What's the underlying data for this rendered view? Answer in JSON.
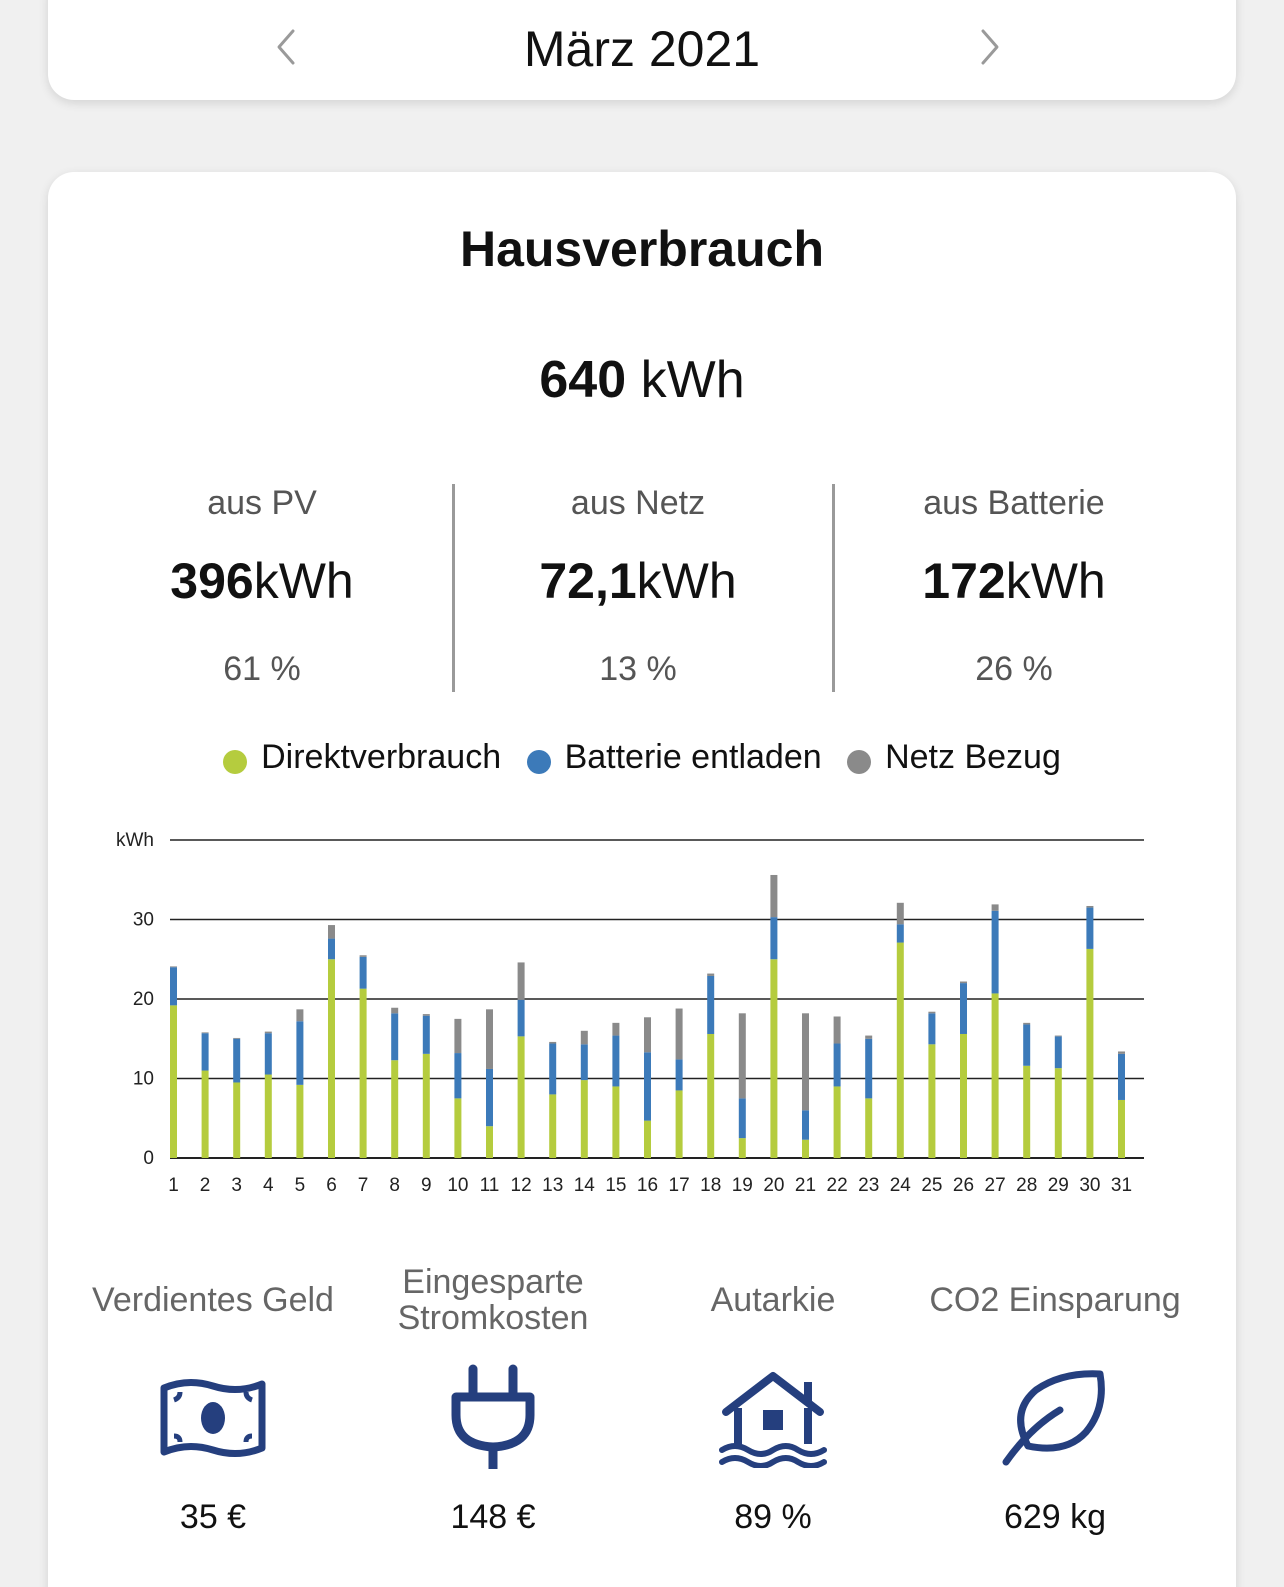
{
  "header": {
    "month": "März 2021",
    "prev_icon": "chevron-left-icon",
    "next_icon": "chevron-right-icon"
  },
  "card": {
    "title": "Hausverbrauch",
    "total_value": "640",
    "total_unit": "kWh"
  },
  "stats": [
    {
      "label": "aus PV",
      "value": "396",
      "unit": "kWh",
      "percent": "61 %"
    },
    {
      "label": "aus Netz",
      "value": "72,1",
      "unit": "kWh",
      "percent": "13 %"
    },
    {
      "label": "aus Batterie",
      "value": "172",
      "unit": "kWh",
      "percent": "26 %"
    }
  ],
  "legend": [
    {
      "label": "Direktverbrauch",
      "color": "#b5cc3e"
    },
    {
      "label": "Batterie entladen",
      "color": "#3c7ab9"
    },
    {
      "label": "Netz Bezug",
      "color": "#8a8a8a"
    }
  ],
  "chart_data": {
    "type": "bar",
    "stacked": true,
    "ylabel": "kWh",
    "ylim": [
      0,
      40
    ],
    "yticks": [
      0,
      10,
      20,
      30
    ],
    "grid": true,
    "legend_position": "top",
    "categories": [
      "1",
      "2",
      "3",
      "4",
      "5",
      "6",
      "7",
      "8",
      "9",
      "10",
      "11",
      "12",
      "13",
      "14",
      "15",
      "16",
      "17",
      "18",
      "19",
      "20",
      "21",
      "22",
      "23",
      "24",
      "25",
      "26",
      "27",
      "28",
      "29",
      "30",
      "31"
    ],
    "series": [
      {
        "name": "Direktverbrauch",
        "color": "#b5cc3e",
        "values": [
          19.2,
          11.0,
          9.5,
          10.5,
          9.2,
          25.0,
          21.3,
          12.3,
          13.1,
          7.5,
          4.0,
          15.3,
          8.0,
          9.8,
          9.0,
          4.7,
          8.5,
          15.6,
          2.5,
          25.0,
          2.3,
          9.0,
          7.5,
          27.1,
          14.3,
          15.6,
          20.7,
          11.6,
          11.3,
          26.3,
          7.3
        ]
      },
      {
        "name": "Batterie entladen",
        "color": "#3c7ab9",
        "values": [
          4.8,
          4.7,
          5.5,
          5.2,
          8.0,
          2.6,
          4.0,
          5.9,
          4.8,
          5.7,
          7.2,
          4.6,
          6.4,
          4.5,
          6.4,
          8.6,
          3.9,
          7.3,
          5.0,
          5.3,
          3.7,
          5.4,
          7.5,
          2.3,
          3.9,
          6.4,
          10.4,
          5.2,
          4.0,
          5.2,
          5.8
        ]
      },
      {
        "name": "Netz Bezug",
        "color": "#8a8a8a",
        "values": [
          0.1,
          0.1,
          0.1,
          0.2,
          1.5,
          1.7,
          0.2,
          0.7,
          0.2,
          4.3,
          7.5,
          4.7,
          0.2,
          1.7,
          1.6,
          4.4,
          6.4,
          0.3,
          10.7,
          5.3,
          12.2,
          3.4,
          0.4,
          2.7,
          0.2,
          0.2,
          0.8,
          0.2,
          0.1,
          0.2,
          0.3
        ]
      }
    ]
  },
  "metrics": [
    {
      "label": "Verdientes Geld",
      "icon": "money-bill-icon",
      "value": "35 €"
    },
    {
      "label": "Eingesparte Stromkosten",
      "icon": "power-plug-icon",
      "value": "148 €"
    },
    {
      "label": "Autarkie",
      "icon": "house-flood-icon",
      "value": "89 %"
    },
    {
      "label": "CO2 Einsparung",
      "icon": "leaf-icon",
      "value": "629 kg"
    }
  ],
  "colors": {
    "icon": "#253f7e",
    "text_muted": "#555555"
  }
}
